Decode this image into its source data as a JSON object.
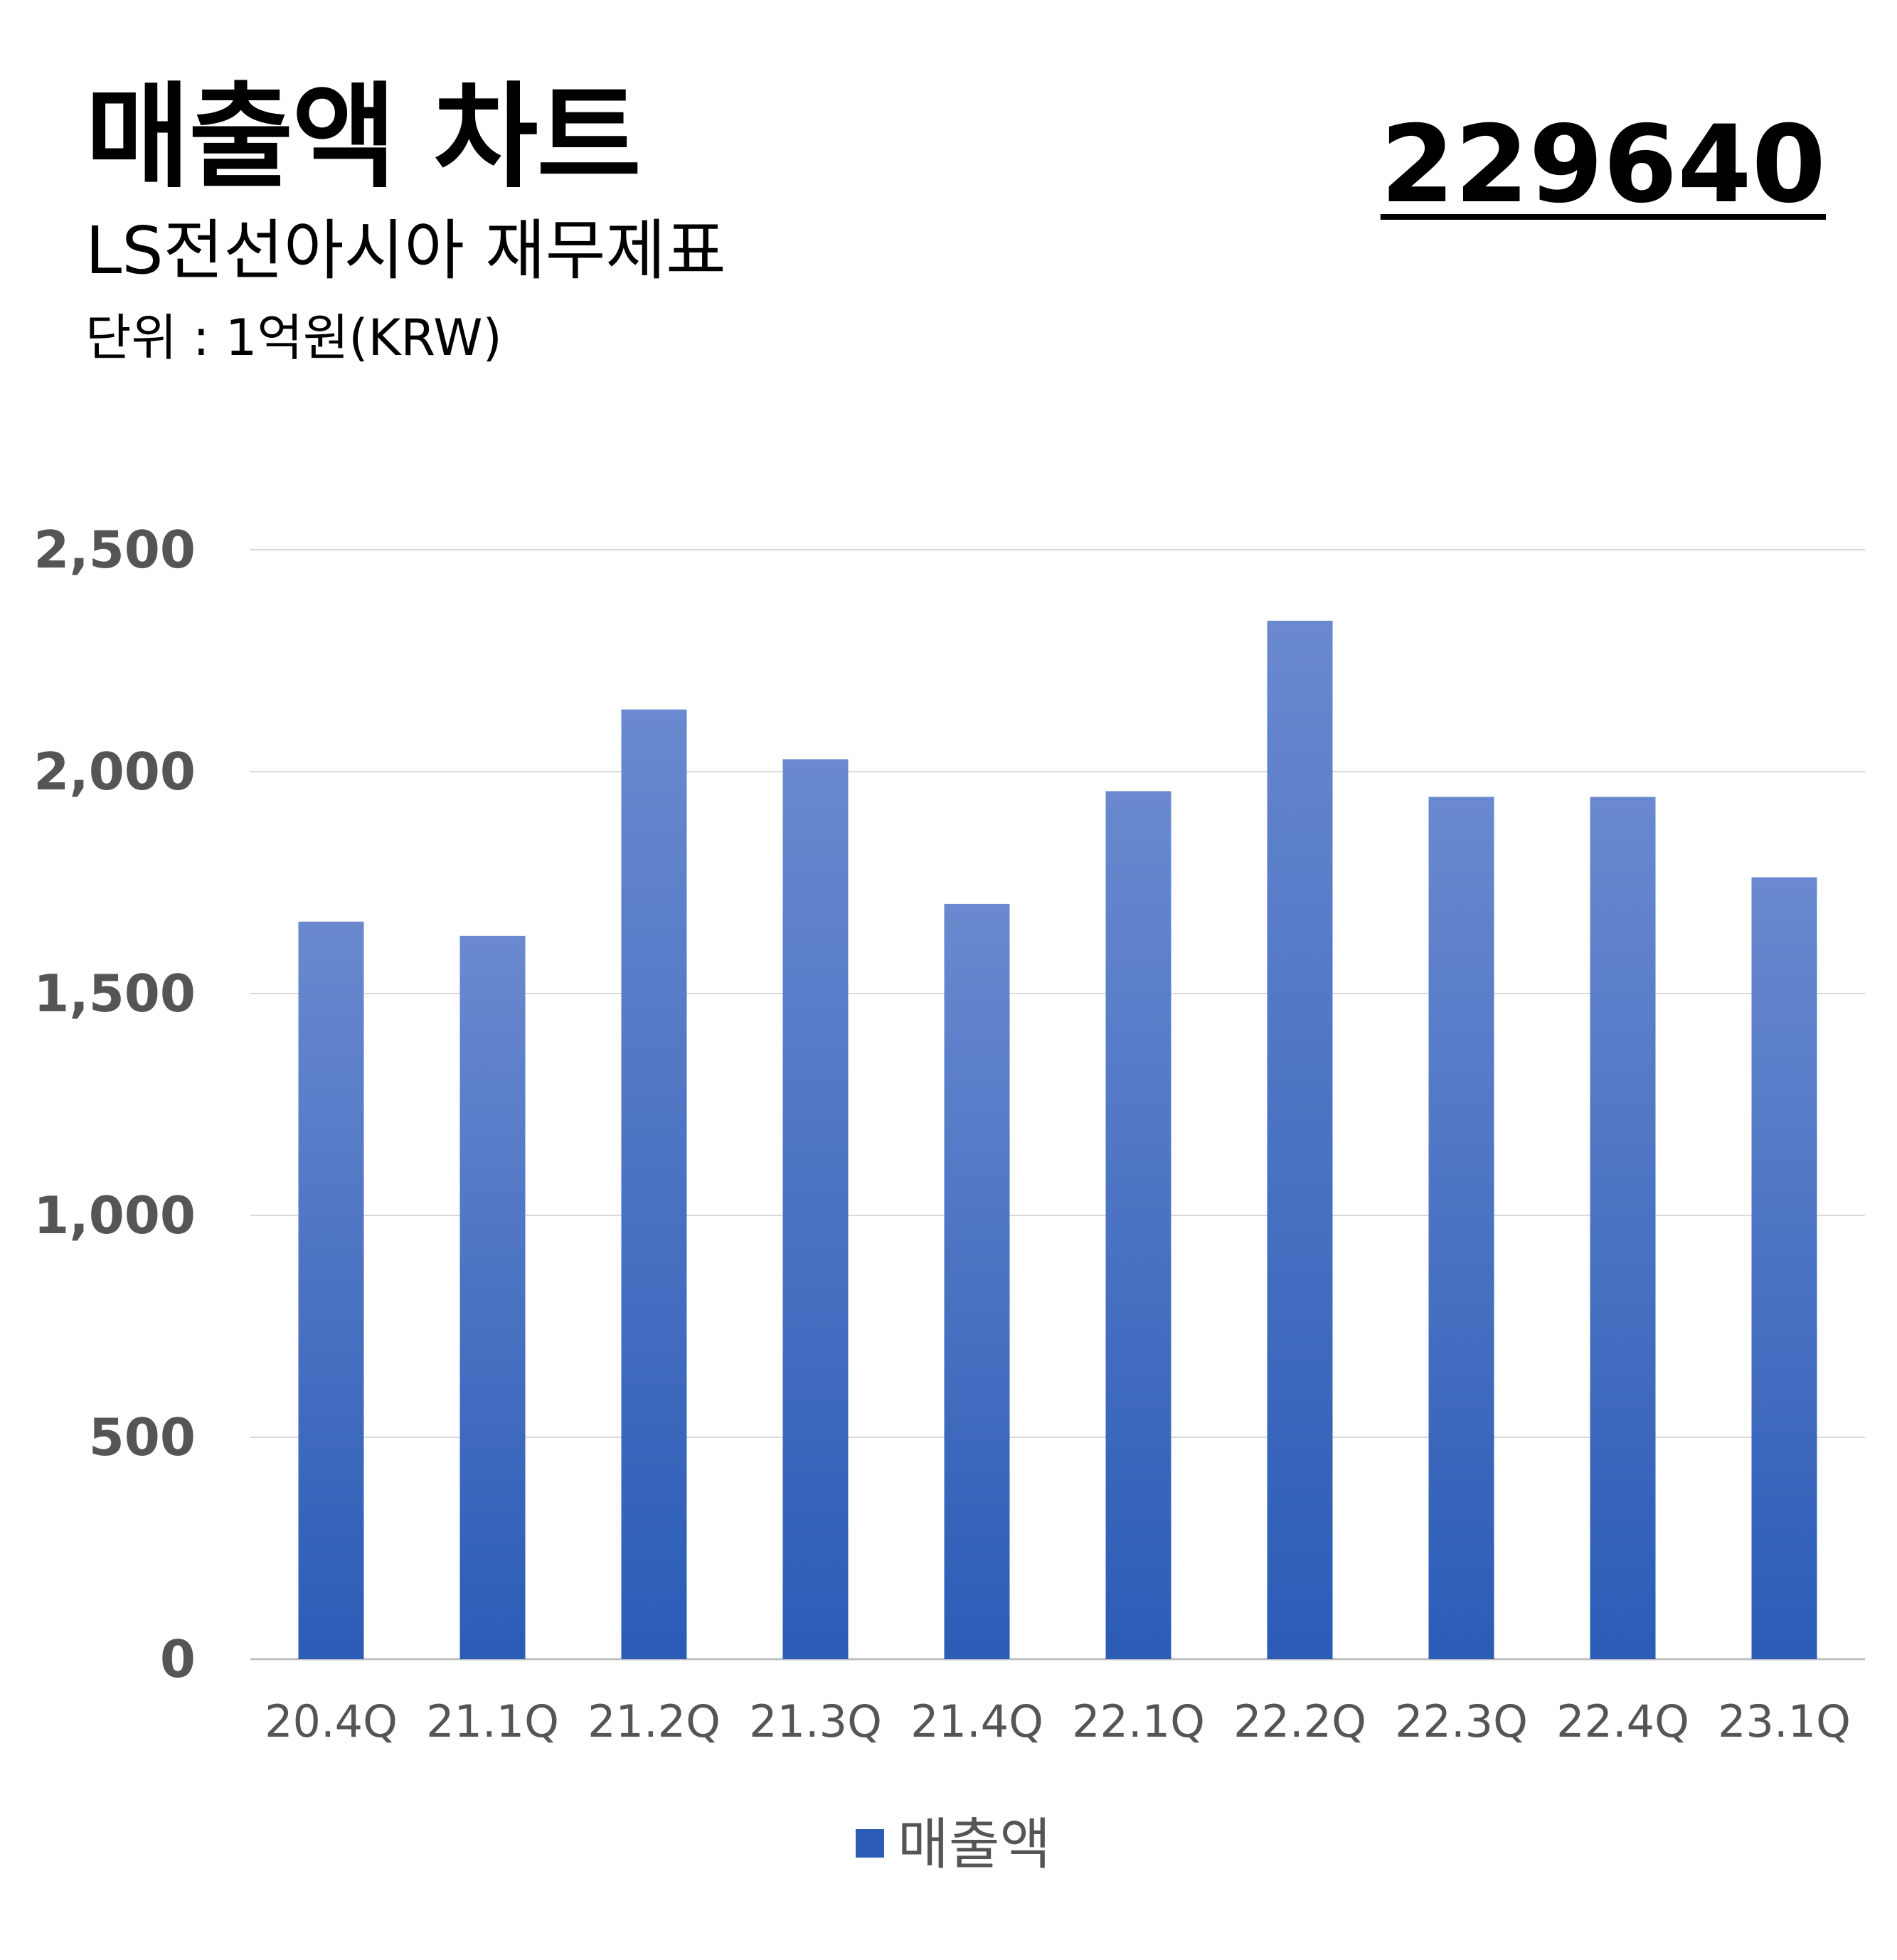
{
  "header": {
    "title": "매출액 차트",
    "subtitle": "LS전선아시아 재무제표",
    "unit": "단위 : 1억원(KRW)",
    "code": "229640"
  },
  "colors": {
    "bar_top": "#6a89cf",
    "bar_bottom": "#2b5cb6",
    "grid": "#d9d9d9",
    "axis_text": "#555555"
  },
  "chart_data": {
    "type": "bar",
    "categories": [
      "20.4Q",
      "21.1Q",
      "21.2Q",
      "21.3Q",
      "21.4Q",
      "22.1Q",
      "22.2Q",
      "22.3Q",
      "22.4Q",
      "23.1Q"
    ],
    "series": [
      {
        "name": "매출액",
        "values": [
          1662,
          1630,
          2140,
          2028,
          1702,
          1956,
          2340,
          1943,
          1943,
          1762
        ]
      }
    ],
    "ylim": [
      0,
      2500
    ],
    "yticks": [
      0,
      500,
      1000,
      1500,
      2000,
      2500
    ],
    "ytick_labels": [
      "0",
      "500",
      "1,000",
      "1,500",
      "2,000",
      "2,500"
    ],
    "grid": true,
    "legend": "bottom-center",
    "xlabel": "",
    "ylabel": ""
  }
}
